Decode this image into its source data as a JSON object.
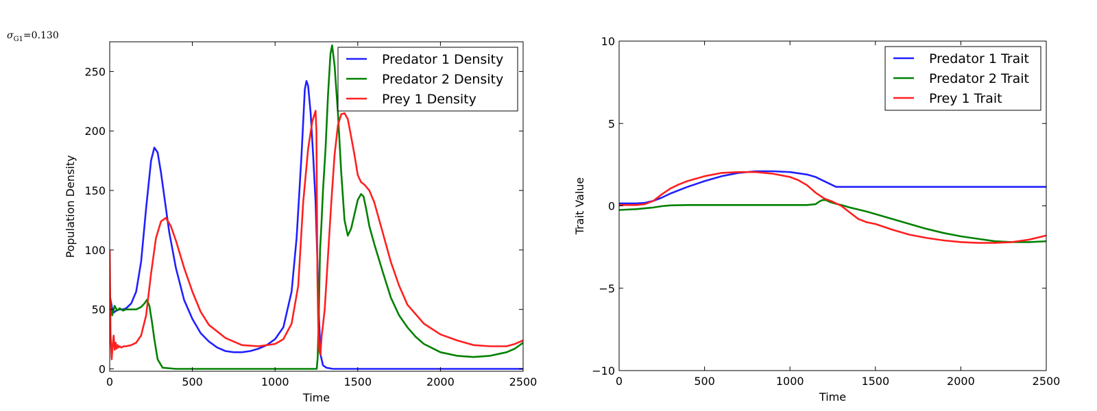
{
  "annotation": {
    "symbol": "σ",
    "subscript": "G1",
    "equals": "=",
    "value": "0.130"
  },
  "colors": {
    "blue": "#1f1fff",
    "green": "#008000",
    "red": "#ff1f1f"
  },
  "chart_data": [
    {
      "type": "line",
      "xlabel": "Time",
      "ylabel": "Population Density",
      "xlim": [
        0,
        2500
      ],
      "ylim": [
        -2,
        275
      ],
      "xticks": [
        0,
        500,
        1000,
        1500,
        2000,
        2500
      ],
      "yticks": [
        0,
        50,
        100,
        150,
        200,
        250
      ],
      "grid": false,
      "legend": "top-right",
      "series": [
        {
          "name": "Predator 1 Density",
          "color": "#1f1fff",
          "x": [
            0,
            20,
            40,
            60,
            80,
            100,
            130,
            160,
            190,
            220,
            250,
            270,
            290,
            310,
            330,
            360,
            400,
            450,
            500,
            550,
            600,
            650,
            700,
            750,
            800,
            850,
            900,
            950,
            1000,
            1050,
            1100,
            1130,
            1160,
            1180,
            1190,
            1200,
            1215,
            1230,
            1245,
            1255,
            1265,
            1275,
            1290,
            1310,
            1350,
            1400,
            1500,
            2000,
            2500
          ],
          "y": [
            62,
            47,
            49,
            50,
            50,
            51,
            55,
            65,
            90,
            135,
            175,
            186,
            182,
            165,
            145,
            115,
            85,
            58,
            42,
            30,
            23,
            18,
            15,
            14,
            14,
            15,
            17,
            20,
            25,
            35,
            65,
            110,
            180,
            235,
            242,
            238,
            215,
            180,
            140,
            95,
            45,
            12,
            3,
            1,
            0,
            0,
            0,
            0,
            0
          ]
        },
        {
          "name": "Predator 2 Density",
          "color": "#008000",
          "x": [
            0,
            15,
            30,
            45,
            60,
            80,
            100,
            130,
            160,
            190,
            210,
            225,
            240,
            255,
            270,
            290,
            320,
            400,
            600,
            800,
            1000,
            1200,
            1252,
            1258,
            1265,
            1272,
            1280,
            1290,
            1305,
            1320,
            1335,
            1345,
            1360,
            1380,
            1400,
            1420,
            1440,
            1460,
            1480,
            1500,
            1520,
            1535,
            1550,
            1570,
            1600,
            1650,
            1700,
            1750,
            1800,
            1850,
            1900,
            2000,
            2100,
            2200,
            2300,
            2400,
            2450,
            2500
          ],
          "y": [
            62,
            45,
            53,
            49,
            51,
            49,
            50,
            50,
            50,
            52,
            55,
            58,
            53,
            40,
            25,
            8,
            1,
            0,
            0,
            0,
            0,
            0,
            0,
            10,
            50,
            100,
            120,
            150,
            185,
            230,
            265,
            272,
            255,
            215,
            165,
            125,
            112,
            118,
            130,
            142,
            147,
            145,
            135,
            120,
            105,
            82,
            60,
            45,
            35,
            27,
            21,
            14,
            11,
            10,
            11,
            14,
            17,
            22
          ]
        },
        {
          "name": "Prey 1 Density",
          "color": "#ff1f1f",
          "x": [
            0,
            5,
            12,
            18,
            24,
            30,
            36,
            42,
            48,
            54,
            60,
            70,
            85,
            100,
            130,
            160,
            190,
            220,
            250,
            280,
            310,
            340,
            370,
            400,
            450,
            500,
            550,
            600,
            700,
            800,
            900,
            1000,
            1050,
            1100,
            1140,
            1170,
            1200,
            1225,
            1245,
            1250,
            1256,
            1262,
            1268,
            1274,
            1282,
            1290,
            1300,
            1320,
            1340,
            1360,
            1380,
            1400,
            1420,
            1440,
            1460,
            1480,
            1500,
            1520,
            1540,
            1570,
            1600,
            1650,
            1700,
            1750,
            1800,
            1900,
            2000,
            2100,
            2200,
            2300,
            2400,
            2450,
            2500
          ],
          "y": [
            100,
            30,
            8,
            20,
            28,
            16,
            22,
            17,
            20,
            18,
            19,
            18,
            19,
            19,
            20,
            22,
            28,
            45,
            80,
            110,
            124,
            127,
            120,
            108,
            85,
            65,
            48,
            37,
            26,
            20,
            19,
            21,
            25,
            38,
            70,
            140,
            185,
            208,
            217,
            200,
            80,
            30,
            15,
            12,
            28,
            37,
            50,
            95,
            140,
            180,
            205,
            214,
            215,
            210,
            195,
            180,
            163,
            157,
            155,
            150,
            140,
            115,
            90,
            70,
            54,
            38,
            29,
            24,
            20,
            19,
            19,
            21,
            24
          ]
        }
      ]
    },
    {
      "type": "line",
      "xlabel": "Time",
      "ylabel": "Trait Value",
      "xlim": [
        0,
        2500
      ],
      "ylim": [
        -10,
        10
      ],
      "xticks": [
        0,
        500,
        1000,
        1500,
        2000,
        2500
      ],
      "yticks": [
        -10,
        -5,
        0,
        5,
        10
      ],
      "grid": false,
      "legend": "top-right",
      "series": [
        {
          "name": "Predator 1 Trait",
          "color": "#1f1fff",
          "x": [
            0,
            100,
            150,
            200,
            250,
            300,
            400,
            500,
            600,
            700,
            800,
            900,
            1000,
            1100,
            1150,
            1200,
            1250,
            1270,
            1300,
            1500,
            2000,
            2500
          ],
          "y": [
            0.15,
            0.15,
            0.18,
            0.3,
            0.5,
            0.75,
            1.15,
            1.5,
            1.8,
            2.0,
            2.1,
            2.1,
            2.05,
            1.9,
            1.75,
            1.5,
            1.25,
            1.15,
            1.15,
            1.15,
            1.15,
            1.15
          ]
        },
        {
          "name": "Predator 2 Trait",
          "color": "#008000",
          "x": [
            0,
            100,
            200,
            250,
            300,
            400,
            600,
            800,
            1000,
            1100,
            1150,
            1170,
            1190,
            1210,
            1230,
            1260,
            1300,
            1350,
            1450,
            1500,
            1600,
            1700,
            1800,
            1900,
            2000,
            2100,
            2200,
            2300,
            2400,
            2500
          ],
          "y": [
            -0.25,
            -0.2,
            -0.1,
            -0.02,
            0.03,
            0.05,
            0.05,
            0.05,
            0.05,
            0.05,
            0.1,
            0.25,
            0.35,
            0.35,
            0.25,
            0.15,
            0.05,
            -0.1,
            -0.35,
            -0.5,
            -0.8,
            -1.1,
            -1.4,
            -1.65,
            -1.85,
            -2.0,
            -2.15,
            -2.2,
            -2.2,
            -2.15
          ]
        },
        {
          "name": "Prey 1 Trait",
          "color": "#ff1f1f",
          "x": [
            0,
            100,
            150,
            200,
            250,
            300,
            350,
            400,
            500,
            600,
            700,
            800,
            900,
            950,
            1000,
            1050,
            1100,
            1150,
            1200,
            1250,
            1300,
            1350,
            1400,
            1450,
            1500,
            1600,
            1700,
            1800,
            1900,
            2000,
            2100,
            2200,
            2300,
            2400,
            2500
          ],
          "y": [
            0.05,
            0.05,
            0.1,
            0.3,
            0.7,
            1.05,
            1.3,
            1.5,
            1.8,
            2.0,
            2.05,
            2.05,
            1.95,
            1.85,
            1.75,
            1.55,
            1.25,
            0.8,
            0.45,
            0.25,
            0.0,
            -0.4,
            -0.8,
            -1.0,
            -1.1,
            -1.45,
            -1.75,
            -1.95,
            -2.1,
            -2.2,
            -2.25,
            -2.25,
            -2.2,
            -2.05,
            -1.8
          ]
        }
      ]
    }
  ]
}
